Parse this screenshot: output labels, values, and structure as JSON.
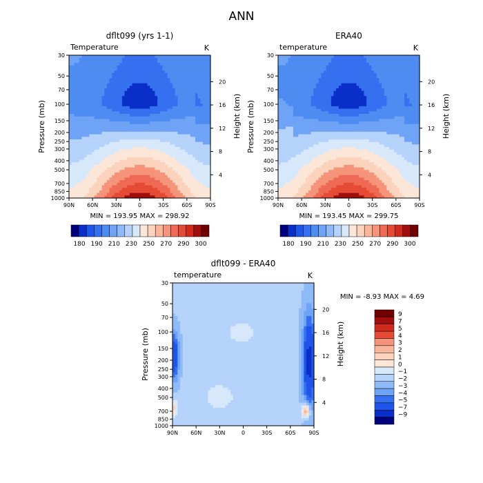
{
  "main_title": "ANN",
  "colors": {
    "top_scale": [
      "#00007e",
      "#0a2ec8",
      "#1f55e8",
      "#3570f0",
      "#4f8cf2",
      "#6fa3f6",
      "#8fbaf8",
      "#b4d2fa",
      "#d8e8fb",
      "#fbe6d8",
      "#fbd2bc",
      "#f9b69a",
      "#f5947a",
      "#ee6a55",
      "#e54a34",
      "#cf2a1c",
      "#a00f0e",
      "#700000"
    ],
    "diff_scale": [
      "#00007e",
      "#0a2ec8",
      "#1f55e8",
      "#3570f0",
      "#4f8cf2",
      "#6fa3f6",
      "#8fbaf8",
      "#b4d2fa",
      "#d8e8fb",
      "#fbe6d8",
      "#fbd2bc",
      "#f9b69a",
      "#f5947a",
      "#ee6a55",
      "#e54a34",
      "#cf2a1c",
      "#a00f0e",
      "#700000"
    ]
  },
  "chart_data": [
    {
      "type": "heatmap",
      "id": "model",
      "title": "dflt099 (yrs 1-1)",
      "variable_label": "Temperature",
      "units": "K",
      "xlabel": "",
      "ylabel": "Pressure (mb)",
      "y2label": "Height (km)",
      "x_ticks": [
        "90N",
        "60N",
        "30N",
        "0",
        "30S",
        "60S",
        "90S"
      ],
      "y_ticks": [
        30,
        50,
        70,
        100,
        150,
        200,
        250,
        300,
        400,
        500,
        700,
        850,
        1000
      ],
      "y2_ticks": [
        4,
        8,
        12,
        16,
        20
      ],
      "stats": "MIN = 193.95   MAX = 298.92",
      "min": 193.95,
      "max": 298.92,
      "colorbar_levels": [
        180,
        190,
        200,
        210,
        220,
        230,
        240,
        250,
        260,
        270,
        280,
        290,
        300
      ],
      "colorbar_labels": [
        "180",
        "190",
        "210",
        "230",
        "250",
        "270",
        "290",
        "300"
      ]
    },
    {
      "type": "heatmap",
      "id": "obs",
      "title": "ERA40",
      "variable_label": "temperature",
      "units": "K",
      "xlabel": "",
      "ylabel": "Pressure (mb)",
      "y2label": "Height (km)",
      "x_ticks": [
        "90N",
        "60N",
        "30N",
        "0",
        "30S",
        "60S",
        "90S"
      ],
      "y_ticks": [
        30,
        50,
        70,
        100,
        150,
        200,
        250,
        300,
        400,
        500,
        700,
        850,
        1000
      ],
      "y2_ticks": [
        4,
        8,
        12,
        16,
        20
      ],
      "stats": "MIN = 193.45   MAX = 299.75",
      "min": 193.45,
      "max": 299.75,
      "colorbar_levels": [
        180,
        190,
        200,
        210,
        220,
        230,
        240,
        250,
        260,
        270,
        280,
        290,
        300
      ],
      "colorbar_labels": [
        "180",
        "190",
        "210",
        "230",
        "250",
        "270",
        "290",
        "300"
      ]
    },
    {
      "type": "heatmap",
      "id": "diff",
      "title": "dflt099 - ERA40",
      "variable_label": "temperature",
      "units": "K",
      "xlabel": "",
      "ylabel": "Pressure (mb)",
      "y2label": "Height (km)",
      "x_ticks": [
        "90N",
        "60N",
        "30N",
        "0",
        "30S",
        "60S",
        "90S"
      ],
      "y_ticks": [
        30,
        50,
        70,
        100,
        150,
        200,
        250,
        300,
        400,
        500,
        700,
        850,
        1000
      ],
      "y2_ticks": [
        4,
        8,
        12,
        16,
        20
      ],
      "stats": "MIN =   -8.93   MAX =    4.69",
      "min": -8.93,
      "max": 4.69,
      "colorbar_levels": [
        -9,
        -7,
        -5,
        -4,
        -3,
        -2,
        -1,
        0,
        1,
        2,
        3,
        4,
        5,
        7,
        9
      ],
      "colorbar_labels": [
        "9",
        "7",
        "5",
        "4",
        "3",
        "2",
        "1",
        "0",
        "−1",
        "−2",
        "−3",
        "−4",
        "−5",
        "−7",
        "−9"
      ]
    }
  ]
}
